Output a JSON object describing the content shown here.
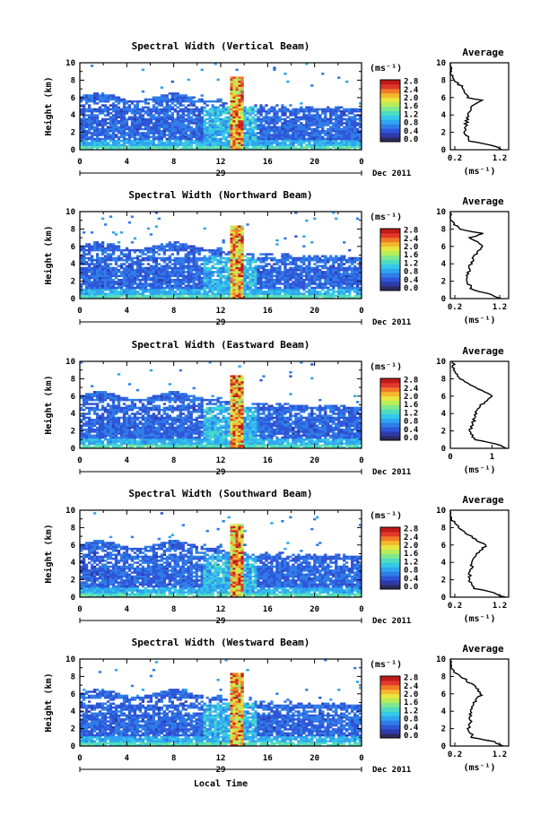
{
  "chart_data": [
    {
      "type": "heatmap",
      "title": "Spectral Width (Vertical Beam)",
      "ylabel": "Height (km)",
      "x_ticks": [
        "0",
        "4",
        "8",
        "12",
        "16",
        "20",
        "0"
      ],
      "y_ticks": [
        "0",
        "2",
        "4",
        "6",
        "8",
        "10"
      ],
      "date_day": "29",
      "date_label": "Dec 2011",
      "colorbar_unit": "(ms⁻¹)",
      "colorbar_ticks": [
        "0.0",
        "0.4",
        "0.8",
        "1.2",
        "1.6",
        "2.0",
        "2.4",
        "2.8"
      ],
      "profile_title": "Average",
      "profile_xticks": [
        "0.2",
        "1.2"
      ],
      "profile_xlabel": "(ms⁻¹)",
      "profile_xlim": [
        0.1,
        1.4
      ],
      "profile": [
        [
          0,
          1.25
        ],
        [
          0.5,
          1.05
        ],
        [
          1,
          0.55
        ],
        [
          2,
          0.4
        ],
        [
          3,
          0.45
        ],
        [
          4,
          0.5
        ],
        [
          5,
          0.6
        ],
        [
          5.7,
          0.8
        ],
        [
          6,
          0.5
        ],
        [
          7,
          0.4
        ],
        [
          8,
          0.2
        ],
        [
          8.5,
          0.15
        ],
        [
          9,
          0.1
        ],
        [
          10,
          0.1
        ]
      ]
    },
    {
      "type": "heatmap",
      "title": "Spectral Width (Northward Beam)",
      "ylabel": "Height (km)",
      "x_ticks": [
        "0",
        "4",
        "8",
        "12",
        "16",
        "20",
        "0"
      ],
      "y_ticks": [
        "0",
        "2",
        "4",
        "6",
        "8",
        "10"
      ],
      "date_day": "29",
      "date_label": "Dec 2011",
      "colorbar_unit": "(ms⁻¹)",
      "colorbar_ticks": [
        "0.0",
        "0.4",
        "0.8",
        "1.2",
        "1.6",
        "2.0",
        "2.4",
        "2.8"
      ],
      "profile_title": "Average",
      "profile_xticks": [
        "0.2",
        "1.2"
      ],
      "profile_xlabel": "(ms⁻¹)",
      "profile_xlim": [
        0.1,
        1.4
      ],
      "profile": [
        [
          0,
          1.2
        ],
        [
          0.5,
          1.0
        ],
        [
          1,
          0.6
        ],
        [
          2,
          0.45
        ],
        [
          3,
          0.5
        ],
        [
          4,
          0.55
        ],
        [
          5,
          0.65
        ],
        [
          6,
          0.85
        ],
        [
          7,
          0.55
        ],
        [
          7.5,
          0.8
        ],
        [
          8,
          0.3
        ],
        [
          8.5,
          0.2
        ],
        [
          9,
          0.1
        ],
        [
          10,
          0.1
        ]
      ]
    },
    {
      "type": "heatmap",
      "title": "Spectral Width (Eastward Beam)",
      "ylabel": "Height (km)",
      "x_ticks": [
        "0",
        "4",
        "8",
        "12",
        "16",
        "20",
        "0"
      ],
      "y_ticks": [
        "0",
        "2",
        "4",
        "6",
        "8",
        "10"
      ],
      "date_day": "29",
      "date_label": "Dec 2011",
      "colorbar_unit": "(ms⁻¹)",
      "colorbar_ticks": [
        "0.0",
        "0.4",
        "0.8",
        "1.2",
        "1.6",
        "2.0",
        "2.4",
        "2.8"
      ],
      "profile_title": "Average",
      "profile_xticks": [
        "0",
        "1"
      ],
      "profile_xlabel": "(ms⁻¹)",
      "profile_xlim": [
        0,
        1.4
      ],
      "profile": [
        [
          0,
          1.35
        ],
        [
          0.5,
          1.1
        ],
        [
          1,
          0.6
        ],
        [
          2,
          0.45
        ],
        [
          3,
          0.55
        ],
        [
          4,
          0.6
        ],
        [
          5,
          0.75
        ],
        [
          6,
          1.0
        ],
        [
          7,
          0.6
        ],
        [
          8,
          0.25
        ],
        [
          9,
          0.1
        ],
        [
          10,
          0.05
        ]
      ]
    },
    {
      "type": "heatmap",
      "title": "Spectral Width (Southward Beam)",
      "ylabel": "Height (km)",
      "x_ticks": [
        "0",
        "4",
        "8",
        "12",
        "16",
        "20",
        "0"
      ],
      "y_ticks": [
        "0",
        "2",
        "4",
        "6",
        "8",
        "10"
      ],
      "date_day": "29",
      "date_label": "Dec 2011",
      "colorbar_unit": "(ms⁻¹)",
      "colorbar_ticks": [
        "0.0",
        "0.4",
        "0.8",
        "1.2",
        "1.6",
        "2.0",
        "2.4",
        "2.8"
      ],
      "profile_title": "Average",
      "profile_xticks": [
        "0.2",
        "1.2"
      ],
      "profile_xlabel": "(ms⁻¹)",
      "profile_xlim": [
        0.1,
        1.4
      ],
      "profile": [
        [
          0,
          1.3
        ],
        [
          0.5,
          1.1
        ],
        [
          1,
          0.65
        ],
        [
          2,
          0.5
        ],
        [
          3,
          0.55
        ],
        [
          4,
          0.6
        ],
        [
          5,
          0.7
        ],
        [
          6,
          0.9
        ],
        [
          7,
          0.55
        ],
        [
          8,
          0.3
        ],
        [
          8.5,
          0.2
        ],
        [
          9,
          0.1
        ],
        [
          10,
          0.1
        ]
      ]
    },
    {
      "type": "heatmap",
      "title": "Spectral Width (Westward Beam)",
      "ylabel": "Height (km)",
      "x_ticks": [
        "0",
        "4",
        "8",
        "12",
        "16",
        "20",
        "0"
      ],
      "y_ticks": [
        "0",
        "2",
        "4",
        "6",
        "8",
        "10"
      ],
      "date_day": "29",
      "date_label": "Dec 2011",
      "xlabel": "Local Time",
      "colorbar_unit": "(ms⁻¹)",
      "colorbar_ticks": [
        "0.0",
        "0.4",
        "0.8",
        "1.2",
        "1.6",
        "2.0",
        "2.4",
        "2.8"
      ],
      "profile_title": "Average",
      "profile_xticks": [
        "0.2",
        "1.2"
      ],
      "profile_xlabel": "(ms⁻¹)",
      "profile_xlim": [
        0.1,
        1.4
      ],
      "profile": [
        [
          0,
          1.25
        ],
        [
          0.5,
          1.05
        ],
        [
          1,
          0.6
        ],
        [
          2,
          0.5
        ],
        [
          3,
          0.55
        ],
        [
          4,
          0.55
        ],
        [
          5,
          0.65
        ],
        [
          6,
          0.8
        ],
        [
          7,
          0.6
        ],
        [
          8,
          0.35
        ],
        [
          8.5,
          0.2
        ],
        [
          9,
          0.1
        ],
        [
          10,
          0.1
        ]
      ]
    }
  ],
  "colorscale": [
    "#2b2b5e",
    "#2f3aa8",
    "#2f55d8",
    "#2f7de8",
    "#2fa4f0",
    "#36c8e8",
    "#4fdcc0",
    "#7fe890",
    "#b7ee5a",
    "#e8e640",
    "#f4b830",
    "#f07a28",
    "#e0382a",
    "#c01a1a"
  ]
}
